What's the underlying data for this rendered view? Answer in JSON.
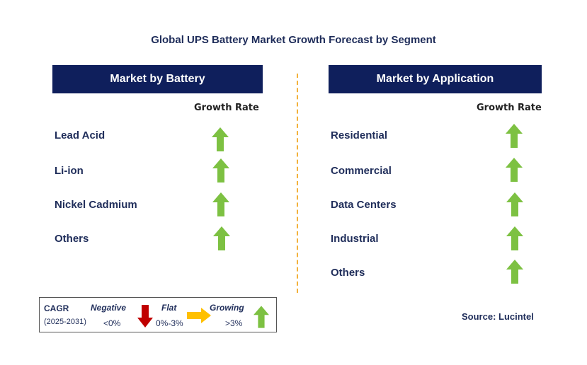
{
  "title": "Global UPS Battery Market Growth Forecast by Segment",
  "left_panel": {
    "header": "Market by Battery",
    "growth_rate_label": "Growth Rate",
    "rows": [
      "Lead Acid",
      "Li-ion",
      "Nickel Cadmium",
      "Others"
    ],
    "row_trend": "growing"
  },
  "right_panel": {
    "header": "Market by Application",
    "growth_rate_label": "Growth Rate",
    "rows": [
      "Residential",
      "Commercial",
      "Data Centers",
      "Industrial",
      "Others"
    ],
    "row_trend": "growing"
  },
  "legend": {
    "cagr": "CAGR",
    "period": "(2025-2031)",
    "negative": "Negative",
    "negative_range": "<0%",
    "flat": "Flat",
    "flat_range": "0%-3%",
    "growing": "Growing",
    "growing_range": ">3%"
  },
  "source": "Source: Lucintel",
  "colors": {
    "header_bg": "#0f1f5c",
    "growing_arrow": "#7dc142",
    "negative_arrow": "#c00000",
    "flat_arrow": "#ffc000",
    "divider": "#f2b23c"
  },
  "icons": {
    "growing": "up-arrow-icon",
    "negative": "down-arrow-icon",
    "flat": "right-arrow-icon"
  }
}
